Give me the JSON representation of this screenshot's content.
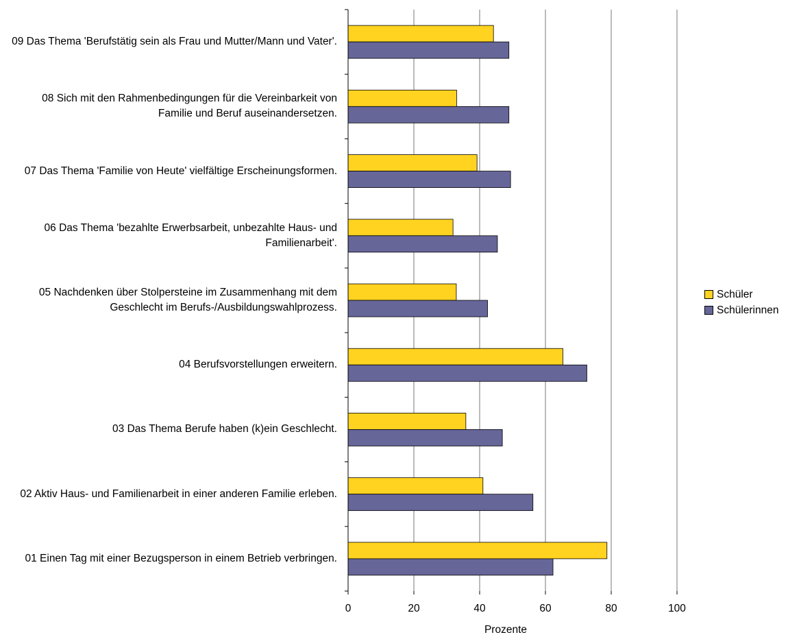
{
  "chart_data": {
    "type": "bar",
    "orientation": "horizontal",
    "categories": [
      "09 Das Thema 'Berufstätig sein als Frau und Mutter/Mann und Vater'.",
      "08 Sich mit den Rahmenbedingungen für die Vereinbarkeit von Familie und Beruf auseinandersetzen.",
      "07 Das Thema 'Familie von Heute'  vielfältige Erscheinungsformen.",
      "06 Das Thema 'bezahlte Erwerbsarbeit, unbezahlte Haus- und Familienarbeit'.",
      "05  Nachdenken über Stolpersteine im Zusammenhang mit dem Geschlecht im Berufs-/Ausbildungswahlprozess.",
      "04  Berufsvorstellungen erweitern.",
      "03 Das Thema Berufe haben (k)ein Geschlecht.",
      "02 Aktiv Haus- und Familienarbeit in einer anderen Familie erleben.",
      "01 Einen Tag mit einer Bezugsperson in einem Betrieb verbringen."
    ],
    "series": [
      {
        "name": "Schüler",
        "color": "#ffd320",
        "values": [
          44.2,
          33.0,
          39.2,
          31.9,
          32.9,
          65.3,
          35.8,
          41.0,
          78.7
        ]
      },
      {
        "name": "Schülerinnen",
        "color": "#666699",
        "values": [
          48.9,
          48.9,
          49.4,
          45.4,
          42.4,
          72.6,
          46.9,
          56.2,
          62.3
        ]
      }
    ],
    "xlabel": "Prozente",
    "xlim": [
      0,
      100
    ],
    "xticks": [
      "0",
      "20",
      "40",
      "60",
      "80",
      "100"
    ],
    "grid": "vertical",
    "legend": "right"
  }
}
